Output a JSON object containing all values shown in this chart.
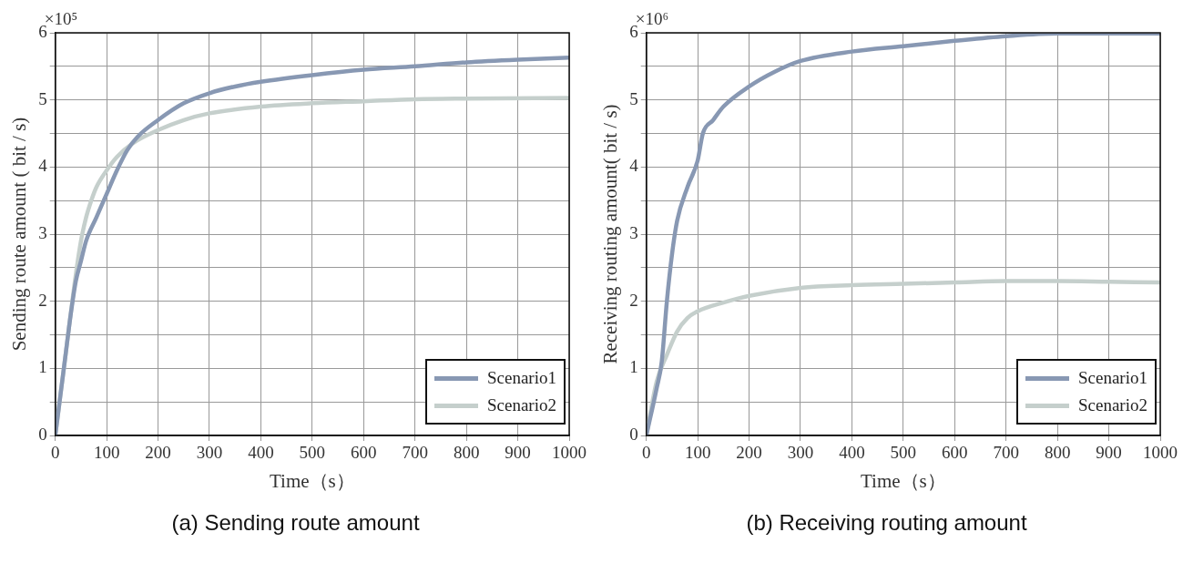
{
  "chart_data": [
    {
      "type": "line",
      "title": "(a) Sending route amount",
      "xlabel": "Time（s）",
      "ylabel": "Sending route amount ( bit / s)",
      "annotations": [
        "×10⁵"
      ],
      "xlim": [
        0,
        1000
      ],
      "xticks": [
        0,
        100,
        200,
        300,
        400,
        500,
        600,
        700,
        800,
        900,
        1000
      ],
      "ylim": [
        0,
        6
      ],
      "yticks": [
        0,
        {
          "value": 0.5,
          "label": null
        },
        1,
        {
          "value": 1.5,
          "label": null
        },
        2,
        {
          "value": 2.5,
          "label": null
        },
        3,
        {
          "value": 3.5,
          "label": null
        },
        4,
        {
          "value": 4.5,
          "label": null
        },
        5,
        {
          "value": 5.5,
          "label": null
        },
        6
      ],
      "grid": true,
      "legend": "bottom right",
      "marker": "none",
      "line_style": "solid",
      "series": [
        {
          "name": "Scenario1",
          "color": "#8898b3",
          "x": [
            0,
            10,
            20,
            30,
            40,
            50,
            60,
            80,
            100,
            120,
            140,
            160,
            200,
            250,
            300,
            350,
            400,
            500,
            600,
            700,
            800,
            900,
            1000
          ],
          "values": [
            0,
            0.6,
            1.2,
            1.8,
            2.3,
            2.6,
            2.9,
            3.25,
            3.6,
            3.95,
            4.25,
            4.45,
            4.7,
            4.95,
            5.1,
            5.2,
            5.27,
            5.37,
            5.45,
            5.5,
            5.56,
            5.6,
            5.63
          ]
        },
        {
          "name": "Scenario2",
          "color": "#c5cfcc",
          "x": [
            0,
            20,
            40,
            50,
            60,
            70,
            80,
            100,
            120,
            150,
            200,
            250,
            300,
            400,
            500,
            600,
            700,
            800,
            1000
          ],
          "values": [
            0,
            1.2,
            2.4,
            2.9,
            3.25,
            3.5,
            3.7,
            3.95,
            4.15,
            4.35,
            4.55,
            4.7,
            4.8,
            4.9,
            4.95,
            4.98,
            5.01,
            5.02,
            5.03
          ]
        }
      ]
    },
    {
      "type": "line",
      "title": "(b) Receiving routing amount",
      "xlabel": "Time（s）",
      "ylabel": "Receiving routing amount( bit / s)",
      "annotations": [
        "×10⁶"
      ],
      "xlim": [
        0,
        1000
      ],
      "xticks": [
        0,
        100,
        200,
        300,
        400,
        500,
        600,
        700,
        800,
        900,
        1000
      ],
      "ylim": [
        0,
        6
      ],
      "yticks": [
        0,
        {
          "value": 0.5,
          "label": null
        },
        1,
        {
          "value": 1.5,
          "label": null
        },
        2,
        {
          "value": 2.5,
          "label": null
        },
        3,
        {
          "value": 3.5,
          "label": null
        },
        4,
        {
          "value": 4.5,
          "label": null
        },
        5,
        {
          "value": 5.5,
          "label": null
        },
        6
      ],
      "grid": true,
      "legend": "bottom right",
      "marker": "none",
      "line_style": "solid",
      "series": [
        {
          "name": "Scenario1",
          "color": "#8898b3",
          "x": [
            0,
            20,
            30,
            40,
            50,
            60,
            80,
            100,
            110,
            130,
            150,
            200,
            250,
            300,
            400,
            500,
            600,
            700,
            800,
            900,
            1000
          ],
          "values": [
            0,
            0.7,
            1.1,
            2.0,
            2.7,
            3.2,
            3.7,
            4.1,
            4.5,
            4.7,
            4.9,
            5.2,
            5.42,
            5.58,
            5.72,
            5.8,
            5.88,
            5.95,
            5.99,
            5.99,
            5.99
          ]
        },
        {
          "name": "Scenario2",
          "color": "#c5cfcc",
          "x": [
            0,
            20,
            40,
            60,
            80,
            100,
            150,
            200,
            300,
            400,
            500,
            600,
            700,
            800,
            900,
            1000
          ],
          "values": [
            0,
            0.8,
            1.2,
            1.55,
            1.75,
            1.85,
            1.98,
            2.08,
            2.2,
            2.24,
            2.26,
            2.28,
            2.3,
            2.3,
            2.29,
            2.28
          ]
        }
      ]
    }
  ]
}
